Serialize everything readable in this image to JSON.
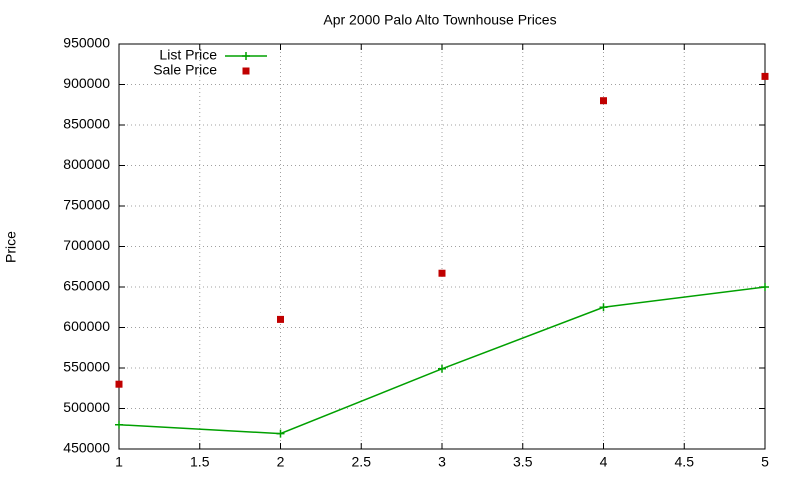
{
  "chart_data": {
    "type": "line",
    "title": "Apr 2000 Palo Alto Townhouse Prices",
    "y_label": "Price",
    "x": [
      1,
      2,
      3,
      4,
      5
    ],
    "series": [
      {
        "name": "List Price",
        "color": "#00a000",
        "style": "linespoints",
        "values": [
          480000,
          469000,
          549000,
          625000,
          650000
        ]
      },
      {
        "name": "Sale Price",
        "color": "#c00000",
        "style": "points",
        "values": [
          530000,
          610000,
          667000,
          880000,
          910000
        ]
      }
    ],
    "xlim": [
      1,
      5
    ],
    "xticks": [
      1,
      1.5,
      2,
      2.5,
      3,
      3.5,
      4,
      4.5,
      5
    ],
    "ylim": [
      450000,
      950000
    ],
    "yticks": [
      450000,
      500000,
      550000,
      600000,
      650000,
      700000,
      750000,
      800000,
      850000,
      900000,
      950000
    ],
    "grid": true,
    "legend": "top left"
  }
}
